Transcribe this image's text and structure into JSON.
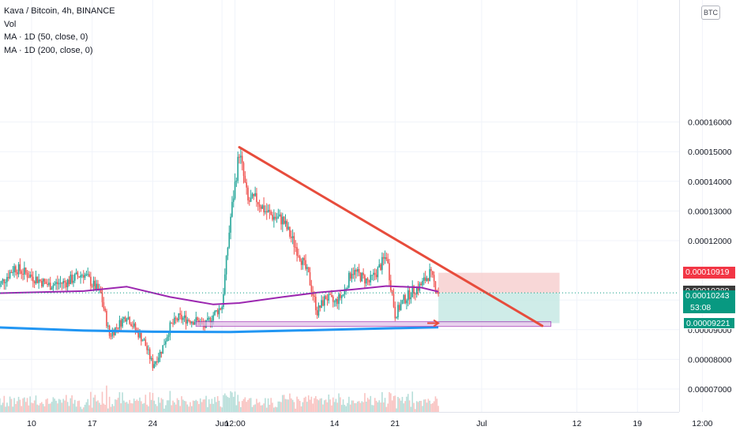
{
  "legend": {
    "symbol": "Kava / Bitcoin, 4h, BINANCE",
    "volume": "Vol",
    "ma50": "MA · 1D (50, close, 0)",
    "ma200": "MA · 1D (200, close, 0)"
  },
  "currency_badge": "BTC",
  "price_tags": {
    "stop": "0.00010919",
    "ma50_value": "0.00010280",
    "last_price": "0.00010243",
    "countdown": "53:08",
    "target": "0.00009221"
  },
  "colors": {
    "up_candle": "#26a69a",
    "down_candle": "#ef5350",
    "ma50": "#9c27b0",
    "ma200": "#2196f3",
    "trendline": "#e74c3c",
    "stop_zone": "#f6c9c9",
    "target_zone": "#bfe5e0",
    "support_zone": "#e1bee7",
    "stop_tag": "#f23645",
    "ma50_tag": "#3a3a3a",
    "last_tag": "#089981"
  },
  "chart_data": {
    "type": "candlestick",
    "title": "Kava / Bitcoin, 4h, BINANCE",
    "y_axis": {
      "ticks": [
        "0.00016000",
        "0.00015000",
        "0.00014000",
        "0.00013000",
        "0.00012000",
        "0.00010000",
        "0.00009000",
        "0.00008000",
        "0.00007000"
      ],
      "ylim": [
        6.95e-05,
        0.000166
      ]
    },
    "x_axis": {
      "ticks": [
        "10",
        "17",
        "24",
        "Jun",
        "12:00",
        "14",
        "21",
        "Jul",
        "12",
        "19",
        "12:00"
      ]
    },
    "price_path": [
      {
        "date": "May 6",
        "price": 0.000104
      },
      {
        "date": "May 8",
        "price": 0.000111
      },
      {
        "date": "May 10",
        "price": 0.000108
      },
      {
        "date": "May 12",
        "price": 0.000105
      },
      {
        "date": "May 14",
        "price": 0.000106
      },
      {
        "date": "May 16",
        "price": 0.000109
      },
      {
        "date": "May 18",
        "price": 0.000102
      },
      {
        "date": "May 19",
        "price": 8.8e-05
      },
      {
        "date": "May 21",
        "price": 9.5e-05
      },
      {
        "date": "May 22",
        "price": 9e-05
      },
      {
        "date": "May 23",
        "price": 8.6e-05
      },
      {
        "date": "May 24",
        "price": 7.8e-05
      },
      {
        "date": "May 25",
        "price": 8.3e-05
      },
      {
        "date": "May 26",
        "price": 9.1e-05
      },
      {
        "date": "May 27",
        "price": 9.4e-05
      },
      {
        "date": "May 29",
        "price": 9.3e-05
      },
      {
        "date": "May 30",
        "price": 9.1e-05
      },
      {
        "date": "May 31",
        "price": 9.5e-05
      },
      {
        "date": "Jun 1",
        "price": 9.8e-05
      },
      {
        "date": "Jun 2",
        "price": 0.000128
      },
      {
        "date": "Jun 3",
        "price": 0.00015
      },
      {
        "date": "Jun 4",
        "price": 0.000133
      },
      {
        "date": "Jun 5",
        "price": 0.000134
      },
      {
        "date": "Jun 6",
        "price": 0.00013
      },
      {
        "date": "Jun 7",
        "price": 0.000128
      },
      {
        "date": "Jun 8",
        "price": 0.000127
      },
      {
        "date": "Jun 9",
        "price": 0.000121
      },
      {
        "date": "Jun 10",
        "price": 0.000115
      },
      {
        "date": "Jun 11",
        "price": 0.000108
      },
      {
        "date": "Jun 12",
        "price": 9.6e-05
      },
      {
        "date": "Jun 13",
        "price": 0.000101
      },
      {
        "date": "Jun 14",
        "price": 9.9e-05
      },
      {
        "date": "Jun 15",
        "price": 0.000102
      },
      {
        "date": "Jun 16",
        "price": 0.00011
      },
      {
        "date": "Jun 17",
        "price": 0.000108
      },
      {
        "date": "Jun 18",
        "price": 0.000106
      },
      {
        "date": "Jun 19",
        "price": 0.00011
      },
      {
        "date": "Jun 20",
        "price": 0.000115
      },
      {
        "date": "Jun 21",
        "price": 9.5e-05
      },
      {
        "date": "Jun 22",
        "price": 0.0001
      },
      {
        "date": "Jun 23",
        "price": 0.000103
      },
      {
        "date": "Jun 24",
        "price": 0.000105
      },
      {
        "date": "Jun 25",
        "price": 0.000109
      },
      {
        "date": "Jun 26",
        "price": 0.0001024
      }
    ],
    "ma50": [
      {
        "date": "May 6",
        "price": 0.0001023
      },
      {
        "date": "May 16",
        "price": 0.000103
      },
      {
        "date": "May 21",
        "price": 0.0001045
      },
      {
        "date": "May 26",
        "price": 0.000101
      },
      {
        "date": "May 31",
        "price": 9.85e-05
      },
      {
        "date": "Jun 3",
        "price": 9.9e-05
      },
      {
        "date": "Jun 8",
        "price": 0.000101
      },
      {
        "date": "Jun 12",
        "price": 0.0001025
      },
      {
        "date": "Jun 16",
        "price": 0.0001035
      },
      {
        "date": "Jun 20",
        "price": 0.0001047
      },
      {
        "date": "Jun 24",
        "price": 0.0001042
      },
      {
        "date": "Jun 26",
        "price": 0.0001028
      }
    ],
    "ma200": [
      {
        "date": "May 6",
        "price": 9.08e-05
      },
      {
        "date": "May 16",
        "price": 8.97e-05
      },
      {
        "date": "May 24",
        "price": 8.93e-05
      },
      {
        "date": "Jun 2",
        "price": 8.92e-05
      },
      {
        "date": "Jun 12",
        "price": 8.99e-05
      },
      {
        "date": "Jun 21",
        "price": 9.05e-05
      },
      {
        "date": "Jun 26",
        "price": 9.08e-05
      }
    ],
    "annotations": {
      "trendline": [
        {
          "date": "Jun 3",
          "price": 0.0001515
        },
        {
          "date": "Jul 8",
          "price": 9.13e-05
        }
      ],
      "position": {
        "entry": 0.00010243,
        "stop": 0.00010919,
        "target": 9.221e-05,
        "from": "Jun 26",
        "to": "Jul 10"
      },
      "support_zone": {
        "from": "May 29",
        "to": "Jul 9",
        "top": 9.27e-05,
        "bottom": 9.11e-05
      }
    }
  }
}
